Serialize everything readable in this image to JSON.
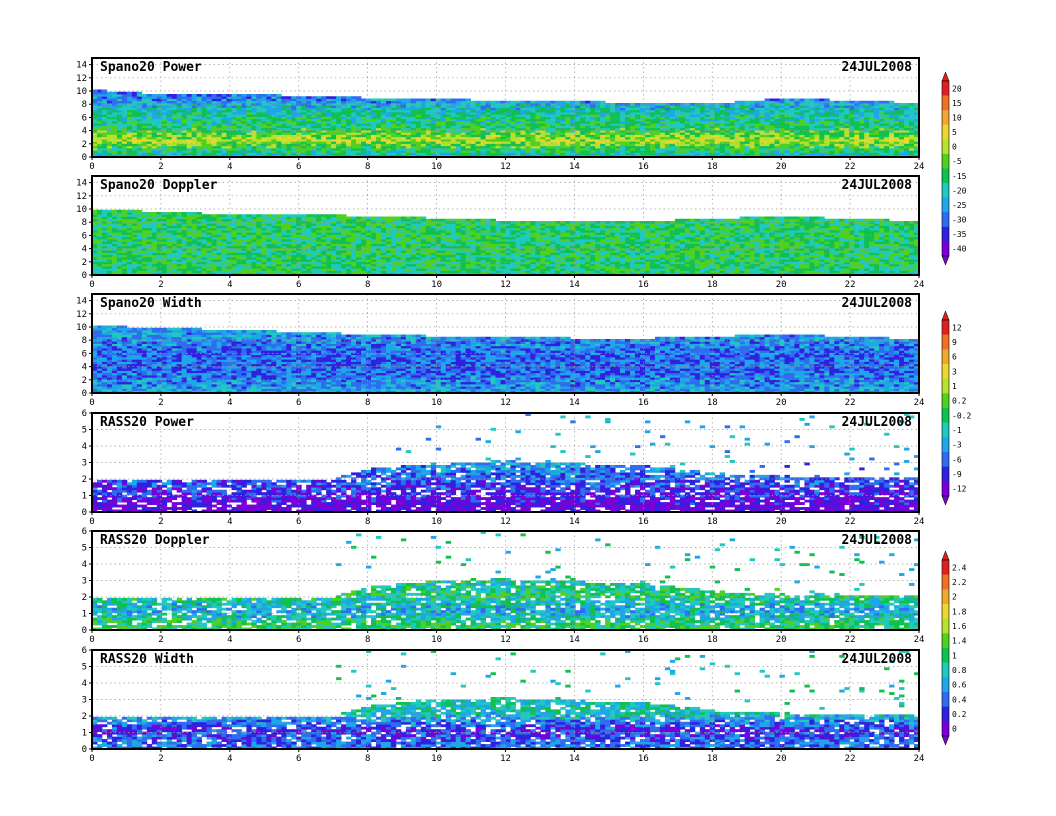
{
  "figure": {
    "type": "time-height profiler plots",
    "date": "24JUL2008"
  },
  "colors": {
    "frame": "#000000",
    "grid": "#9a9a9a",
    "ramp": [
      "#7a00d8",
      "#3020e0",
      "#2e6cf0",
      "#1ea6e8",
      "#20c8c0",
      "#10c050",
      "#50d020",
      "#b8e030",
      "#e8d830",
      "#f0a830",
      "#f07028",
      "#e02020"
    ]
  },
  "colorbars": [
    {
      "id": "snr",
      "labels": [
        "20",
        "15",
        "10",
        "5",
        "0",
        "-5",
        "-15",
        "-20",
        "-25",
        "-30",
        "-35",
        "-40"
      ]
    },
    {
      "id": "width",
      "labels": [
        "12",
        "9",
        "6",
        "3",
        "1",
        "0.2",
        "-0.2",
        "-1",
        "-3",
        "-6",
        "-9",
        "-12"
      ]
    },
    {
      "id": "rass",
      "labels": [
        "2.4",
        "2.2",
        "2",
        "1.8",
        "1.6",
        "1.4",
        "1",
        "0.8",
        "0.6",
        "0.4",
        "0.2",
        "0"
      ]
    }
  ],
  "chart_data": [
    {
      "type": "heatmap",
      "title": "Spano20 Power",
      "date": "24JUL2008",
      "xlim": [
        0,
        24
      ],
      "ylim": [
        0,
        15
      ],
      "xticks": [
        "0",
        "2",
        "4",
        "6",
        "8",
        "10",
        "12",
        "14",
        "16",
        "18",
        "20",
        "22",
        "24"
      ],
      "yticks": [
        "0",
        "2",
        "4",
        "6",
        "8",
        "10",
        "12",
        "14"
      ],
      "top_height_km": [
        {
          "t": 0,
          "z": 10.2
        },
        {
          "t": 2,
          "z": 9.5
        },
        {
          "t": 4,
          "z": 9.6
        },
        {
          "t": 6,
          "z": 9.3
        },
        {
          "t": 8,
          "z": 9.0
        },
        {
          "t": 10,
          "z": 8.9
        },
        {
          "t": 12,
          "z": 8.5
        },
        {
          "t": 14,
          "z": 8.4
        },
        {
          "t": 16,
          "z": 8.3
        },
        {
          "t": 18,
          "z": 8.1
        },
        {
          "t": 20,
          "z": 8.9
        },
        {
          "t": 22,
          "z": 8.6
        },
        {
          "t": 24,
          "z": 8.2
        }
      ],
      "value_profile": [
        {
          "z": 0.5,
          "v": 4
        },
        {
          "z": 2.5,
          "v": 7
        },
        {
          "z": 4.5,
          "v": 5
        },
        {
          "z": 7,
          "v": 4
        },
        {
          "z": 9.5,
          "v": 2
        }
      ]
    },
    {
      "type": "heatmap",
      "title": "Spano20 Doppler",
      "date": "24JUL2008",
      "xlim": [
        0,
        24
      ],
      "ylim": [
        0,
        15
      ],
      "xticks": [
        "0",
        "2",
        "4",
        "6",
        "8",
        "10",
        "12",
        "14",
        "16",
        "18",
        "20",
        "22",
        "24"
      ],
      "yticks": [
        "0",
        "2",
        "4",
        "6",
        "8",
        "10",
        "12",
        "14"
      ],
      "top_height_km": [
        {
          "t": 0,
          "z": 10.0
        },
        {
          "t": 4,
          "z": 9.2
        },
        {
          "t": 8,
          "z": 9.0
        },
        {
          "t": 12,
          "z": 8.3
        },
        {
          "t": 16,
          "z": 8.2
        },
        {
          "t": 20,
          "z": 8.9
        },
        {
          "t": 24,
          "z": 8.2
        }
      ],
      "value_profile": [
        {
          "z": 0.5,
          "v": 5
        },
        {
          "z": 3,
          "v": 5
        },
        {
          "z": 6,
          "v": 5
        },
        {
          "z": 9.5,
          "v": 5
        }
      ]
    },
    {
      "type": "heatmap",
      "title": "Spano20 Width",
      "date": "24JUL2008",
      "xlim": [
        0,
        24
      ],
      "ylim": [
        0,
        15
      ],
      "xticks": [
        "0",
        "2",
        "4",
        "6",
        "8",
        "10",
        "12",
        "14",
        "16",
        "18",
        "20",
        "22",
        "24"
      ],
      "yticks": [
        "0",
        "2",
        "4",
        "6",
        "8",
        "10",
        "12",
        "14"
      ],
      "top_height_km": [
        {
          "t": 0,
          "z": 10.2
        },
        {
          "t": 4,
          "z": 9.6
        },
        {
          "t": 8,
          "z": 8.9
        },
        {
          "t": 12,
          "z": 8.4
        },
        {
          "t": 16,
          "z": 8.3
        },
        {
          "t": 20,
          "z": 8.9
        },
        {
          "t": 24,
          "z": 8.2
        }
      ],
      "value_profile": [
        {
          "z": 0.5,
          "v": 3
        },
        {
          "z": 3,
          "v": 2
        },
        {
          "z": 6,
          "v": 2
        },
        {
          "z": 9.5,
          "v": 3
        }
      ]
    },
    {
      "type": "heatmap",
      "title": "RASS20 Power",
      "date": "24JUL2008",
      "xlim": [
        0,
        24
      ],
      "ylim": [
        0,
        6
      ],
      "xticks": [
        "0",
        "2",
        "4",
        "6",
        "8",
        "10",
        "12",
        "14",
        "16",
        "18",
        "20",
        "22",
        "24"
      ],
      "yticks": [
        "0",
        "1",
        "2",
        "3",
        "4",
        "5",
        "6"
      ],
      "top_height_km": [
        {
          "t": 0,
          "z": 2.0
        },
        {
          "t": 7,
          "z": 2.0
        },
        {
          "t": 8,
          "z": 2.6
        },
        {
          "t": 10,
          "z": 3.0
        },
        {
          "t": 12,
          "z": 3.1
        },
        {
          "t": 16,
          "z": 2.8
        },
        {
          "t": 19,
          "z": 2.2
        },
        {
          "t": 24,
          "z": 2.1
        }
      ],
      "value_profile": [
        {
          "z": 0.4,
          "v": 0
        },
        {
          "z": 1.2,
          "v": 1
        },
        {
          "z": 2.2,
          "v": 2
        },
        {
          "z": 3,
          "v": 3
        }
      ]
    },
    {
      "type": "heatmap",
      "title": "RASS20 Doppler",
      "date": "24JUL2008",
      "xlim": [
        0,
        24
      ],
      "ylim": [
        0,
        6
      ],
      "xticks": [
        "0",
        "2",
        "4",
        "6",
        "8",
        "10",
        "12",
        "14",
        "16",
        "18",
        "20",
        "22",
        "24"
      ],
      "yticks": [
        "0",
        "1",
        "2",
        "3",
        "4",
        "5",
        "6"
      ],
      "top_height_km": [
        {
          "t": 0,
          "z": 2.0
        },
        {
          "t": 7,
          "z": 2.0
        },
        {
          "t": 8,
          "z": 2.6
        },
        {
          "t": 10,
          "z": 3.0
        },
        {
          "t": 12,
          "z": 3.1
        },
        {
          "t": 16,
          "z": 2.8
        },
        {
          "t": 19,
          "z": 2.2
        },
        {
          "t": 24,
          "z": 2.1
        }
      ],
      "value_profile": [
        {
          "z": 0.4,
          "v": 5
        },
        {
          "z": 1.2,
          "v": 3
        },
        {
          "z": 2.2,
          "v": 5
        },
        {
          "z": 3,
          "v": 4
        }
      ]
    },
    {
      "type": "heatmap",
      "title": "RASS20 Width",
      "date": "24JUL2008",
      "xlim": [
        0,
        24
      ],
      "ylim": [
        0,
        6
      ],
      "xticks": [
        "0",
        "2",
        "4",
        "6",
        "8",
        "10",
        "12",
        "14",
        "16",
        "18",
        "20",
        "22",
        "24"
      ],
      "yticks": [
        "0",
        "1",
        "2",
        "3",
        "4",
        "5",
        "6"
      ],
      "top_height_km": [
        {
          "t": 0,
          "z": 2.0
        },
        {
          "t": 7,
          "z": 2.0
        },
        {
          "t": 8,
          "z": 2.6
        },
        {
          "t": 10,
          "z": 3.0
        },
        {
          "t": 12,
          "z": 3.1
        },
        {
          "t": 16,
          "z": 2.8
        },
        {
          "t": 19,
          "z": 2.2
        },
        {
          "t": 24,
          "z": 2.1
        }
      ],
      "value_profile": [
        {
          "z": 0.4,
          "v": 2
        },
        {
          "z": 1.2,
          "v": 1
        },
        {
          "z": 2.2,
          "v": 4
        },
        {
          "z": 3,
          "v": 4
        }
      ]
    }
  ]
}
